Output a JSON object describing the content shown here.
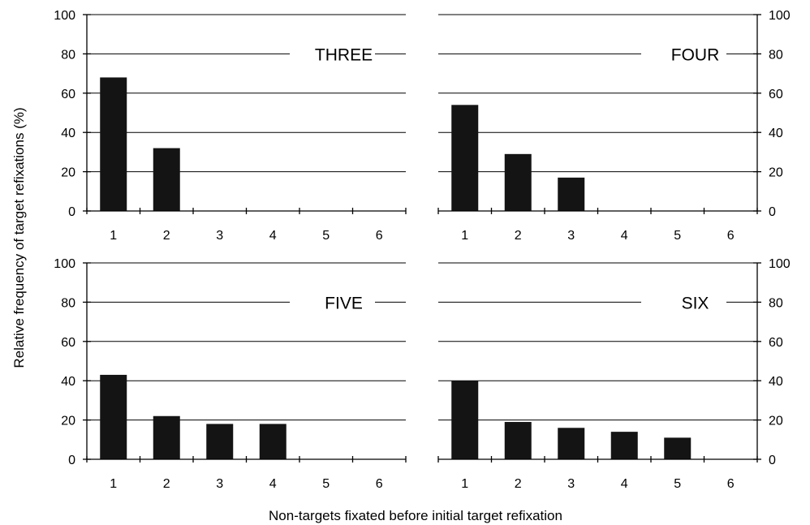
{
  "figure": {
    "ylabel": "Relative frequency of target refixations (%)",
    "xlabel": "Non-targets fixated before initial target refixation"
  },
  "chart_data": [
    {
      "type": "bar",
      "label": "THREE",
      "categories": [
        "1",
        "2",
        "3",
        "4",
        "5",
        "6"
      ],
      "values": [
        68,
        32,
        0,
        0,
        0,
        0
      ],
      "ylim": [
        0,
        100
      ],
      "yticks": [
        "0",
        "20",
        "40",
        "60",
        "80",
        "100"
      ],
      "y_axis_side": "left",
      "grid": true
    },
    {
      "type": "bar",
      "label": "FOUR",
      "categories": [
        "1",
        "2",
        "3",
        "4",
        "5",
        "6"
      ],
      "values": [
        54,
        29,
        17,
        0,
        0,
        0
      ],
      "ylim": [
        0,
        100
      ],
      "yticks": [
        "0",
        "20",
        "40",
        "60",
        "80",
        "100"
      ],
      "y_axis_side": "right",
      "grid": true
    },
    {
      "type": "bar",
      "label": "FIVE",
      "categories": [
        "1",
        "2",
        "3",
        "4",
        "5",
        "6"
      ],
      "values": [
        43,
        22,
        18,
        18,
        0,
        0
      ],
      "ylim": [
        0,
        100
      ],
      "yticks": [
        "0",
        "20",
        "40",
        "60",
        "80",
        "100"
      ],
      "y_axis_side": "left",
      "grid": true
    },
    {
      "type": "bar",
      "label": "SIX",
      "categories": [
        "1",
        "2",
        "3",
        "4",
        "5",
        "6"
      ],
      "values": [
        40,
        19,
        16,
        14,
        11,
        0
      ],
      "ylim": [
        0,
        100
      ],
      "yticks": [
        "0",
        "20",
        "40",
        "60",
        "80",
        "100"
      ],
      "y_axis_side": "right",
      "grid": true
    }
  ]
}
